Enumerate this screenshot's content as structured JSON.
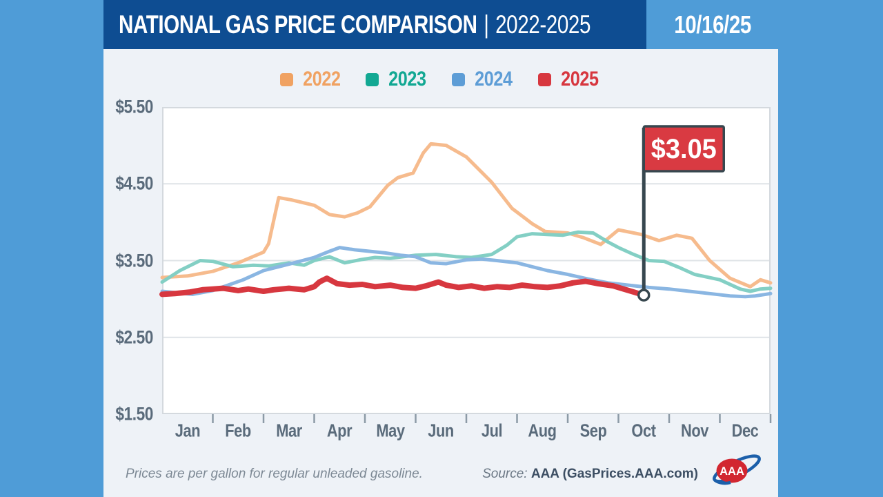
{
  "header": {
    "title": "NATIONAL GAS PRICE COMPARISON",
    "separator": "|",
    "years": "2022-2025",
    "date": "10/16/25"
  },
  "legend": [
    {
      "label": "2022",
      "color": "#F0A262"
    },
    {
      "label": "2023",
      "color": "#12A893"
    },
    {
      "label": "2024",
      "color": "#5D9DD6"
    },
    {
      "label": "2025",
      "color": "#D7373F"
    }
  ],
  "chart_data": {
    "type": "line",
    "title": "NATIONAL GAS PRICE COMPARISON | 2022-2025",
    "unit": "USD per gallon, regular unleaded",
    "x_axis": {
      "months": [
        "Jan",
        "Feb",
        "Mar",
        "Apr",
        "May",
        "Jun",
        "Jul",
        "Aug",
        "Sep",
        "Oct",
        "Nov",
        "Dec"
      ]
    },
    "y_axis": {
      "tick_labels": [
        "$5.50",
        "$4.50",
        "$3.50",
        "$2.50",
        "$1.50"
      ],
      "tick_values": [
        5.5,
        4.5,
        3.5,
        2.5,
        1.5
      ],
      "ylim": [
        1.5,
        5.5
      ],
      "gridline_values": [
        4.5,
        3.5,
        2.5
      ],
      "grid": true
    },
    "legend_position": "top",
    "series": [
      {
        "name": "2022",
        "legend_color": "#F0A262",
        "line_color": "#F6BB8D",
        "stroke_width": 5,
        "x": [
          0,
          0.5,
          1,
          1.5,
          2,
          2.1,
          2.3,
          2.55,
          3,
          3.3,
          3.6,
          3.85,
          4.1,
          4.45,
          4.65,
          4.95,
          5.15,
          5.3,
          5.6,
          6,
          6.5,
          6.9,
          7.3,
          7.55,
          8,
          8.3,
          8.65,
          9,
          9.45,
          9.8,
          10.15,
          10.45,
          10.8,
          11.2,
          11.6,
          11.8,
          12
        ],
        "values": [
          3.28,
          3.3,
          3.36,
          3.47,
          3.61,
          3.72,
          4.32,
          4.29,
          4.22,
          4.1,
          4.07,
          4.12,
          4.2,
          4.48,
          4.58,
          4.64,
          4.9,
          5.02,
          5.0,
          4.85,
          4.52,
          4.18,
          3.98,
          3.88,
          3.86,
          3.8,
          3.71,
          3.9,
          3.84,
          3.76,
          3.83,
          3.79,
          3.5,
          3.27,
          3.16,
          3.25,
          3.21
        ]
      },
      {
        "name": "2023",
        "legend_color": "#12A893",
        "line_color": "#83CFC4",
        "stroke_width": 5,
        "x": [
          0,
          0.35,
          0.75,
          1,
          1.4,
          1.8,
          2.1,
          2.5,
          2.8,
          3,
          3.3,
          3.6,
          3.9,
          4.2,
          4.5,
          5,
          5.4,
          5.8,
          6.1,
          6.5,
          6.8,
          7,
          7.3,
          7.6,
          7.9,
          8.2,
          8.5,
          8.8,
          9,
          9.3,
          9.6,
          9.9,
          10.2,
          10.5,
          11,
          11.4,
          11.6,
          11.8,
          12
        ],
        "values": [
          3.22,
          3.37,
          3.5,
          3.49,
          3.42,
          3.44,
          3.43,
          3.47,
          3.44,
          3.5,
          3.55,
          3.47,
          3.51,
          3.54,
          3.53,
          3.57,
          3.58,
          3.55,
          3.54,
          3.58,
          3.7,
          3.81,
          3.85,
          3.84,
          3.83,
          3.87,
          3.86,
          3.74,
          3.67,
          3.58,
          3.5,
          3.49,
          3.41,
          3.32,
          3.25,
          3.13,
          3.1,
          3.13,
          3.14
        ]
      },
      {
        "name": "2024",
        "legend_color": "#5D9DD6",
        "line_color": "#8AB6E2",
        "stroke_width": 5,
        "x": [
          0,
          0.3,
          0.6,
          1,
          1.3,
          1.6,
          2,
          2.3,
          2.6,
          3,
          3.3,
          3.5,
          3.8,
          4.1,
          4.4,
          4.7,
          5,
          5.3,
          5.6,
          6,
          6.3,
          6.6,
          7,
          7.3,
          7.6,
          8,
          8.4,
          8.8,
          9.2,
          9.6,
          10,
          10.4,
          10.8,
          11.2,
          11.5,
          11.7,
          12
        ],
        "values": [
          3.1,
          3.08,
          3.06,
          3.11,
          3.18,
          3.25,
          3.37,
          3.42,
          3.47,
          3.54,
          3.62,
          3.67,
          3.64,
          3.62,
          3.6,
          3.57,
          3.55,
          3.47,
          3.46,
          3.51,
          3.52,
          3.5,
          3.47,
          3.42,
          3.37,
          3.32,
          3.26,
          3.21,
          3.18,
          3.15,
          3.13,
          3.1,
          3.07,
          3.04,
          3.03,
          3.04,
          3.07
        ]
      },
      {
        "name": "2025",
        "legend_color": "#D7373F",
        "line_color": "#D7373F",
        "stroke_width": 8,
        "x": [
          0,
          0.25,
          0.55,
          0.8,
          1,
          1.2,
          1.5,
          1.7,
          2,
          2.2,
          2.5,
          2.8,
          3,
          3.1,
          3.25,
          3.45,
          3.7,
          3.95,
          4.2,
          4.5,
          4.75,
          5,
          5.2,
          5.45,
          5.6,
          5.85,
          6.1,
          6.35,
          6.6,
          6.85,
          7.1,
          7.35,
          7.6,
          7.85,
          8.1,
          8.35,
          8.6,
          8.9,
          9.1,
          9.3,
          9.5
        ],
        "values": [
          3.06,
          3.07,
          3.09,
          3.12,
          3.13,
          3.14,
          3.11,
          3.13,
          3.1,
          3.12,
          3.14,
          3.12,
          3.16,
          3.22,
          3.27,
          3.2,
          3.18,
          3.19,
          3.16,
          3.18,
          3.15,
          3.14,
          3.17,
          3.22,
          3.18,
          3.15,
          3.17,
          3.14,
          3.16,
          3.15,
          3.18,
          3.16,
          3.15,
          3.17,
          3.21,
          3.23,
          3.2,
          3.17,
          3.13,
          3.09,
          3.05
        ]
      }
    ],
    "callout": {
      "label": "$3.05",
      "x": 9.5,
      "value": 3.05,
      "flag_color": "#D93A42",
      "pole_color": "#37474F",
      "text_color": "#FFFFFF"
    }
  },
  "plot_style": {
    "background": "#FFFFFF",
    "border_color": "#D4D9DE",
    "gridline_color": "#DFE3E7",
    "tick_color": "#8C9AA6",
    "panel_color": "#EEF2F7",
    "header_color": "#0E4D92",
    "canvas_color": "#4F9CD7"
  },
  "footer": {
    "note": "Prices are per gallon for regular unleaded gasoline.",
    "source_label": "Source:",
    "source_value": "AAA (GasPrices.AAA.com)",
    "logo_text": "AAA"
  }
}
